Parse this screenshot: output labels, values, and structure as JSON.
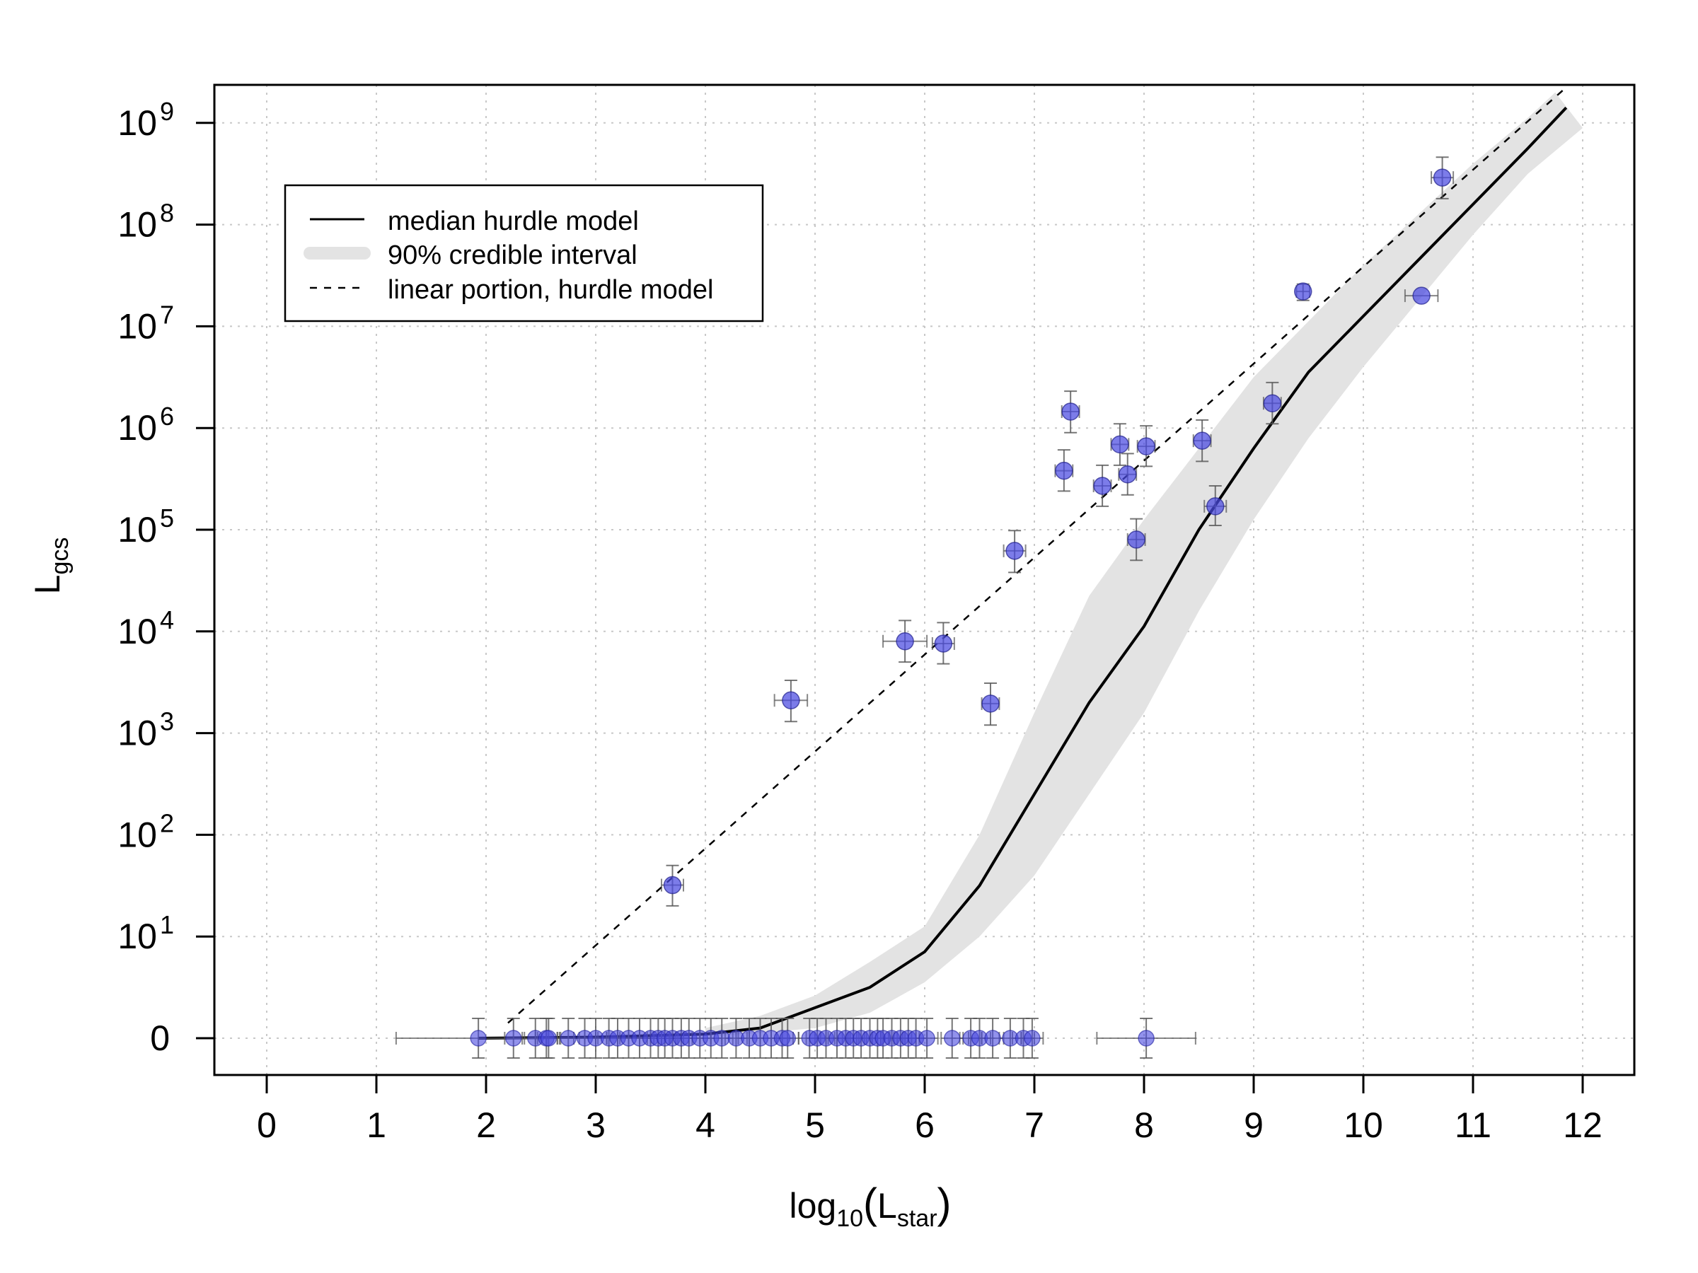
{
  "chart_data": {
    "type": "scatter",
    "title": "",
    "xlabel": {
      "base": "log",
      "sub": "10",
      "open": "(",
      "main": "L",
      "main_sub": "star",
      "close": ")"
    },
    "ylabel": {
      "main": "L",
      "sub": "gcs"
    },
    "xlim": [
      -0.5,
      12.5
    ],
    "x_ticks": [
      "0",
      "1",
      "2",
      "3",
      "4",
      "5",
      "6",
      "7",
      "8",
      "9",
      "10",
      "11",
      "12"
    ],
    "y_axis_scale": "zero plus log10 decades",
    "y_ticks": [
      {
        "label": "0",
        "exp": ""
      },
      {
        "label": "10",
        "exp": "1"
      },
      {
        "label": "10",
        "exp": "2"
      },
      {
        "label": "10",
        "exp": "3"
      },
      {
        "label": "10",
        "exp": "4"
      },
      {
        "label": "10",
        "exp": "5"
      },
      {
        "label": "10",
        "exp": "6"
      },
      {
        "label": "10",
        "exp": "7"
      },
      {
        "label": "10",
        "exp": "8"
      },
      {
        "label": "10",
        "exp": "9"
      }
    ],
    "grid": true,
    "legend_position": "top-left",
    "legend": [
      {
        "label": "median hurdle model",
        "style": "solid"
      },
      {
        "label": "90% credible interval",
        "style": "band"
      },
      {
        "label": "linear portion, hurdle model",
        "style": "dashed"
      }
    ],
    "colors": {
      "points": "#4a4ae0",
      "band": "#e3e3e3",
      "curve": "#000000",
      "errorbars": "#555555"
    },
    "points_nonzero": [
      {
        "x": 3.7,
        "y": 32,
        "ylo": 20,
        "yhi": 50,
        "xerr": 0.1
      },
      {
        "x": 4.78,
        "y": 2100,
        "ylo": 1300,
        "yhi": 3300,
        "xerr": 0.15
      },
      {
        "x": 5.82,
        "y": 8000,
        "ylo": 5000,
        "yhi": 12800,
        "xerr": 0.2
      },
      {
        "x": 6.17,
        "y": 7600,
        "ylo": 4800,
        "yhi": 12200,
        "xerr": 0.1
      },
      {
        "x": 6.6,
        "y": 1950,
        "ylo": 1200,
        "yhi": 3100,
        "xerr": 0.08
      },
      {
        "x": 6.82,
        "y": 62000,
        "ylo": 38000,
        "yhi": 98000,
        "xerr": 0.1
      },
      {
        "x": 7.27,
        "y": 380000,
        "ylo": 240000,
        "yhi": 610000,
        "xerr": 0.08
      },
      {
        "x": 7.33,
        "y": 1450000,
        "ylo": 900000,
        "yhi": 2300000,
        "xerr": 0.08
      },
      {
        "x": 7.62,
        "y": 270000,
        "ylo": 170000,
        "yhi": 430000,
        "xerr": 0.08
      },
      {
        "x": 7.78,
        "y": 690000,
        "ylo": 430000,
        "yhi": 1100000,
        "xerr": 0.08
      },
      {
        "x": 7.85,
        "y": 350000,
        "ylo": 220000,
        "yhi": 560000,
        "xerr": 0.08
      },
      {
        "x": 7.93,
        "y": 80000,
        "ylo": 50000,
        "yhi": 128000,
        "xerr": 0.08
      },
      {
        "x": 8.02,
        "y": 660000,
        "ylo": 420000,
        "yhi": 1050000,
        "xerr": 0.08
      },
      {
        "x": 8.53,
        "y": 750000,
        "ylo": 470000,
        "yhi": 1200000,
        "xerr": 0.08
      },
      {
        "x": 8.65,
        "y": 170000,
        "ylo": 110000,
        "yhi": 270000,
        "xerr": 0.1
      },
      {
        "x": 9.17,
        "y": 1750000,
        "ylo": 1100000,
        "yhi": 2800000,
        "xerr": 0.08
      },
      {
        "x": 9.45,
        "y": 22000000,
        "ylo": 18000000,
        "yhi": 26000000,
        "xerr": 0.06
      },
      {
        "x": 10.53,
        "y": 20000000,
        "ylo": 20000000,
        "yhi": 20000000,
        "xerr": 0.15
      },
      {
        "x": 10.72,
        "y": 290000000,
        "ylo": 180000000,
        "yhi": 460000000,
        "xerr": 0.1
      }
    ],
    "points_zero": [
      {
        "x": 1.93,
        "xerr": 0.75
      },
      {
        "x": 2.25,
        "xerr": 0.08
      },
      {
        "x": 2.45,
        "xerr": 0.1
      },
      {
        "x": 2.55,
        "xerr": 0.1
      },
      {
        "x": 2.57,
        "xerr": 0.1
      },
      {
        "x": 2.75,
        "xerr": 0.1
      },
      {
        "x": 2.9,
        "xerr": 0.1
      },
      {
        "x": 3.0,
        "xerr": 0.1
      },
      {
        "x": 3.12,
        "xerr": 0.1
      },
      {
        "x": 3.2,
        "xerr": 0.1
      },
      {
        "x": 3.3,
        "xerr": 0.1
      },
      {
        "x": 3.4,
        "xerr": 0.1
      },
      {
        "x": 3.5,
        "xerr": 0.1
      },
      {
        "x": 3.57,
        "xerr": 0.1
      },
      {
        "x": 3.63,
        "xerr": 0.1
      },
      {
        "x": 3.7,
        "xerr": 0.1
      },
      {
        "x": 3.78,
        "xerr": 0.1
      },
      {
        "x": 3.85,
        "xerr": 0.1
      },
      {
        "x": 3.95,
        "xerr": 0.1
      },
      {
        "x": 4.05,
        "xerr": 0.1
      },
      {
        "x": 4.15,
        "xerr": 0.1
      },
      {
        "x": 4.28,
        "xerr": 0.1
      },
      {
        "x": 4.4,
        "xerr": 0.1
      },
      {
        "x": 4.5,
        "xerr": 0.1
      },
      {
        "x": 4.6,
        "xerr": 0.1
      },
      {
        "x": 4.7,
        "xerr": 0.1
      },
      {
        "x": 4.75,
        "xerr": 0.1
      },
      {
        "x": 4.95,
        "xerr": 0.1
      },
      {
        "x": 5.02,
        "xerr": 0.1
      },
      {
        "x": 5.1,
        "xerr": 0.1
      },
      {
        "x": 5.2,
        "xerr": 0.1
      },
      {
        "x": 5.28,
        "xerr": 0.1
      },
      {
        "x": 5.35,
        "xerr": 0.1
      },
      {
        "x": 5.42,
        "xerr": 0.1
      },
      {
        "x": 5.5,
        "xerr": 0.1
      },
      {
        "x": 5.57,
        "xerr": 0.1
      },
      {
        "x": 5.62,
        "xerr": 0.1
      },
      {
        "x": 5.7,
        "xerr": 0.1
      },
      {
        "x": 5.78,
        "xerr": 0.1
      },
      {
        "x": 5.85,
        "xerr": 0.1
      },
      {
        "x": 5.92,
        "xerr": 0.1
      },
      {
        "x": 6.02,
        "xerr": 0.1
      },
      {
        "x": 6.25,
        "xerr": 0.1
      },
      {
        "x": 6.42,
        "xerr": 0.1
      },
      {
        "x": 6.5,
        "xerr": 0.1
      },
      {
        "x": 6.62,
        "xerr": 0.1
      },
      {
        "x": 6.78,
        "xerr": 0.1
      },
      {
        "x": 6.9,
        "xerr": 0.1
      },
      {
        "x": 6.98,
        "xerr": 0.1
      },
      {
        "x": 8.02,
        "xerr": 0.45
      }
    ],
    "median_curve": [
      [
        1.93,
        0.0
      ],
      [
        3.0,
        0.01
      ],
      [
        4.0,
        0.04
      ],
      [
        4.5,
        0.1
      ],
      [
        5.0,
        0.3
      ],
      [
        5.5,
        0.5
      ],
      [
        6.0,
        0.85
      ],
      [
        6.5,
        1.5
      ],
      [
        7.0,
        2.4
      ],
      [
        7.5,
        3.3
      ],
      [
        8.0,
        4.05
      ],
      [
        8.5,
        5.0
      ],
      [
        9.0,
        5.8
      ],
      [
        9.5,
        6.55
      ],
      [
        10.0,
        7.1
      ],
      [
        10.5,
        7.65
      ],
      [
        11.0,
        8.2
      ],
      [
        11.5,
        8.75
      ],
      [
        11.85,
        9.15
      ]
    ],
    "band_upper": [
      [
        4.0,
        0.1
      ],
      [
        4.5,
        0.22
      ],
      [
        5.0,
        0.42
      ],
      [
        5.5,
        0.75
      ],
      [
        6.0,
        1.1
      ],
      [
        6.5,
        2.0
      ],
      [
        7.0,
        3.2
      ],
      [
        7.5,
        4.35
      ],
      [
        8.0,
        5.1
      ],
      [
        8.5,
        5.8
      ],
      [
        9.0,
        6.5
      ],
      [
        9.5,
        7.05
      ],
      [
        10.0,
        7.6
      ],
      [
        10.5,
        8.1
      ],
      [
        11.0,
        8.6
      ],
      [
        11.5,
        9.05
      ],
      [
        11.75,
        9.3
      ]
    ],
    "band_lower": [
      [
        4.0,
        0.02
      ],
      [
        4.5,
        0.05
      ],
      [
        5.0,
        0.1
      ],
      [
        5.5,
        0.25
      ],
      [
        6.0,
        0.55
      ],
      [
        6.5,
        1.0
      ],
      [
        7.0,
        1.6
      ],
      [
        7.5,
        2.4
      ],
      [
        8.0,
        3.2
      ],
      [
        8.5,
        4.2
      ],
      [
        9.0,
        5.1
      ],
      [
        9.5,
        5.9
      ],
      [
        10.0,
        6.6
      ],
      [
        10.5,
        7.25
      ],
      [
        11.0,
        7.9
      ],
      [
        11.5,
        8.5
      ],
      [
        12.0,
        8.95
      ]
    ],
    "linear_portion": [
      [
        2.2,
        0.15
      ],
      [
        11.85,
        9.35
      ]
    ]
  }
}
